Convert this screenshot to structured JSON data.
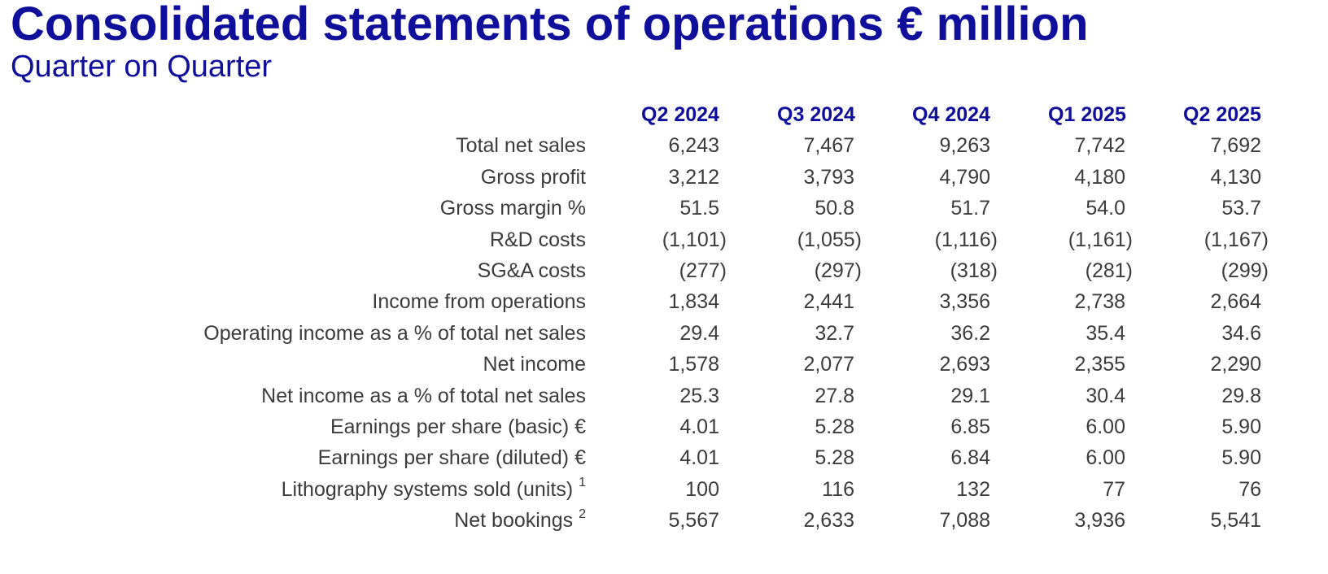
{
  "title": "Consolidated statements of operations € million",
  "subtitle": "Quarter on Quarter",
  "columns": [
    "Q2 2024",
    "Q3 2024",
    "Q4 2024",
    "Q1 2025",
    "Q2 2025"
  ],
  "rows": [
    {
      "label": "Total net sales",
      "note": "",
      "values": [
        "6,243",
        "7,467",
        "9,263",
        "7,742",
        "7,692"
      ]
    },
    {
      "label": "Gross profit",
      "note": "",
      "values": [
        "3,212",
        "3,793",
        "4,790",
        "4,180",
        "4,130"
      ]
    },
    {
      "label": "Gross margin %",
      "note": "",
      "values": [
        "51.5",
        "50.8",
        "51.7",
        "54.0",
        "53.7"
      ]
    },
    {
      "label": "R&D costs",
      "note": "",
      "values": [
        "(1,101)",
        "(1,055)",
        "(1,116)",
        "(1,161)",
        "(1,167)"
      ]
    },
    {
      "label": "SG&A costs",
      "note": "",
      "values": [
        "(277)",
        "(297)",
        "(318)",
        "(281)",
        "(299)"
      ]
    },
    {
      "label": "Income from operations",
      "note": "",
      "values": [
        "1,834",
        "2,441",
        "3,356",
        "2,738",
        "2,664"
      ]
    },
    {
      "label": "Operating income as a % of total net sales",
      "note": "",
      "values": [
        "29.4",
        "32.7",
        "36.2",
        "35.4",
        "34.6"
      ]
    },
    {
      "label": "Net income",
      "note": "",
      "values": [
        "1,578",
        "2,077",
        "2,693",
        "2,355",
        "2,290"
      ]
    },
    {
      "label": "Net income as a % of total net sales",
      "note": "",
      "values": [
        "25.3",
        "27.8",
        "29.1",
        "30.4",
        "29.8"
      ]
    },
    {
      "label": "Earnings per share (basic) €",
      "note": "",
      "values": [
        "4.01",
        "5.28",
        "6.85",
        "6.00",
        "5.90"
      ]
    },
    {
      "label": "Earnings per share (diluted) €",
      "note": "",
      "values": [
        "4.01",
        "5.28",
        "6.84",
        "6.00",
        "5.90"
      ]
    },
    {
      "label": "Lithography systems sold (units)",
      "note": "1",
      "values": [
        "100",
        "116",
        "132",
        "77",
        "76"
      ]
    },
    {
      "label": "Net bookings",
      "note": "2",
      "values": [
        "5,567",
        "2,633",
        "7,088",
        "3,936",
        "5,541"
      ]
    }
  ]
}
